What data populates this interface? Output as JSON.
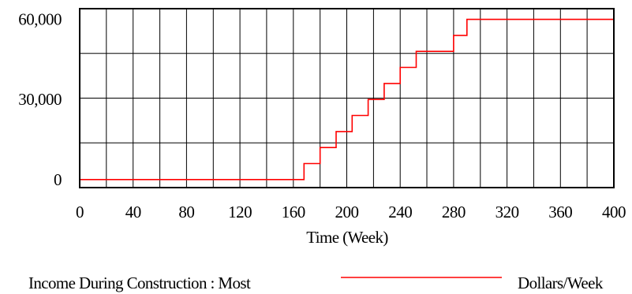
{
  "chart_data": {
    "type": "line",
    "title": "",
    "xlabel": "Time (Week)",
    "ylabel": "",
    "xlim": [
      0,
      400
    ],
    "ylim": [
      -3000,
      64000
    ],
    "x_ticks": [
      0,
      40,
      80,
      120,
      160,
      200,
      240,
      280,
      320,
      360,
      400
    ],
    "x_tick_labels": [
      "0",
      "40",
      "80",
      "120",
      "160",
      "200",
      "240",
      "280",
      "320",
      "360",
      "400"
    ],
    "y_ticks": [
      0,
      30000,
      60000
    ],
    "y_tick_labels": [
      "0",
      "30,000",
      "60,000"
    ],
    "grid": true,
    "step": true,
    "series": [
      {
        "name": "Income During Construction : Most",
        "units": "Dollars/Week",
        "color": "#ff0000",
        "x": [
          0,
          168,
          168,
          180,
          180,
          192,
          192,
          204,
          204,
          216,
          216,
          228,
          228,
          240,
          240,
          252,
          252,
          280,
          280,
          290,
          290,
          400
        ],
        "y": [
          0,
          0,
          6000,
          6000,
          12000,
          12000,
          18000,
          18000,
          24000,
          24000,
          30000,
          30000,
          36000,
          36000,
          42000,
          42000,
          48000,
          48000,
          54000,
          54000,
          60000,
          60000
        ]
      }
    ]
  },
  "legend": {
    "series_label": "Income During Construction : Most",
    "units_label": "Dollars/Week",
    "line_color": "#ff0000"
  }
}
